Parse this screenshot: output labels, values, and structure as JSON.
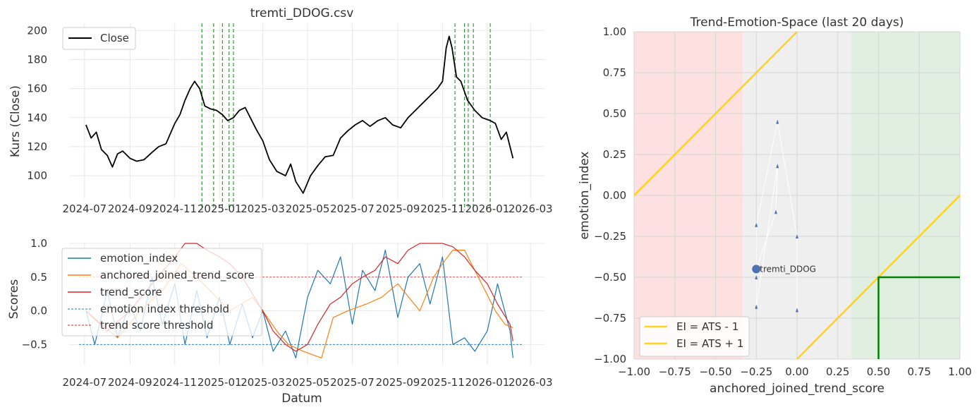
{
  "chart_data": [
    {
      "type": "line",
      "title": "tremti_DDOG.csv",
      "xlabel": "",
      "ylabel": "Kurs (Close)",
      "xlim": [
        "2024-06-10",
        "2026-03-20"
      ],
      "ylim": [
        84,
        205
      ],
      "xticks": [
        "2024-07",
        "2024-09",
        "2024-11",
        "2025-01",
        "2025-03",
        "2025-05",
        "2025-07",
        "2025-09",
        "2025-11",
        "2026-01",
        "2026-03"
      ],
      "yticks": [
        100,
        120,
        140,
        160,
        180,
        200
      ],
      "legend": {
        "position": "top-left",
        "entries": [
          "Close"
        ]
      },
      "grid": true,
      "series": [
        {
          "name": "Close",
          "color": "#000000",
          "x": [
            "2024-07-03",
            "2024-07-10",
            "2024-07-17",
            "2024-07-24",
            "2024-08-01",
            "2024-08-08",
            "2024-08-15",
            "2024-08-22",
            "2024-09-01",
            "2024-09-10",
            "2024-09-20",
            "2024-10-01",
            "2024-10-10",
            "2024-10-20",
            "2024-11-01",
            "2024-11-08",
            "2024-11-15",
            "2024-11-22",
            "2024-11-28",
            "2024-12-05",
            "2024-12-12",
            "2024-12-20",
            "2024-12-28",
            "2025-01-05",
            "2025-01-12",
            "2025-01-20",
            "2025-01-28",
            "2025-02-05",
            "2025-02-12",
            "2025-02-20",
            "2025-03-01",
            "2025-03-10",
            "2025-03-20",
            "2025-04-01",
            "2025-04-08",
            "2025-04-15",
            "2025-04-25",
            "2025-05-05",
            "2025-05-15",
            "2025-05-25",
            "2025-06-05",
            "2025-06-15",
            "2025-06-25",
            "2025-07-05",
            "2025-07-15",
            "2025-07-25",
            "2025-08-05",
            "2025-08-15",
            "2025-08-25",
            "2025-09-05",
            "2025-09-15",
            "2025-09-25",
            "2025-10-05",
            "2025-10-15",
            "2025-10-25",
            "2025-11-01",
            "2025-11-06",
            "2025-11-10",
            "2025-11-14",
            "2025-11-20",
            "2025-11-26",
            "2025-12-05",
            "2025-12-15",
            "2025-12-25",
            "2026-01-05",
            "2026-01-12",
            "2026-01-20",
            "2026-01-27",
            "2026-02-01",
            "2026-02-05"
          ],
          "y": [
            135,
            126,
            130,
            118,
            114,
            106,
            115,
            117,
            112,
            110,
            111,
            116,
            120,
            122,
            136,
            142,
            152,
            160,
            165,
            160,
            148,
            146,
            145,
            142,
            138,
            140,
            145,
            147,
            140,
            132,
            124,
            111,
            103,
            100,
            108,
            96,
            88,
            100,
            107,
            113,
            114,
            126,
            131,
            135,
            138,
            134,
            138,
            140,
            135,
            133,
            140,
            145,
            150,
            155,
            160,
            165,
            188,
            196,
            188,
            168,
            165,
            152,
            145,
            140,
            138,
            136,
            125,
            130,
            120,
            112
          ]
        }
      ],
      "vlines": {
        "color": "#2ca02c",
        "style": "dashed",
        "x": [
          "2024-12-08",
          "2024-12-24",
          "2025-01-05",
          "2025-01-14",
          "2025-01-20",
          "2025-11-18",
          "2025-12-01",
          "2025-12-06",
          "2025-12-13",
          "2026-01-05"
        ]
      }
    },
    {
      "type": "line",
      "title": "",
      "xlabel": "Datum",
      "ylabel": "Scores",
      "xlim": [
        "2024-06-10",
        "2026-03-20"
      ],
      "ylim": [
        -0.8,
        1.0
      ],
      "xticks": [
        "2024-07",
        "2024-09",
        "2024-11",
        "2025-01",
        "2025-03",
        "2025-05",
        "2025-07",
        "2025-09",
        "2025-11",
        "2026-01",
        "2026-03"
      ],
      "yticks": [
        -0.5,
        0.0,
        0.5,
        1.0
      ],
      "yticklabels": [
        "−0.5",
        "0.0",
        "0.5",
        "1.0"
      ],
      "legend": {
        "position": "top-left",
        "entries": [
          "emotion_index",
          "anchored_joined_trend_score",
          "trend_score",
          "emotion index threshold",
          "trend score threshold"
        ]
      },
      "grid": true,
      "series": [
        {
          "name": "emotion_index",
          "color": "#1f77b4",
          "x": [
            "2024-07-03",
            "2024-07-15",
            "2024-08-01",
            "2024-08-15",
            "2024-09-01",
            "2024-09-15",
            "2024-10-01",
            "2024-10-15",
            "2024-11-01",
            "2024-11-15",
            "2024-12-01",
            "2024-12-15",
            "2025-01-01",
            "2025-01-15",
            "2025-02-01",
            "2025-02-15",
            "2025-03-01",
            "2025-03-15",
            "2025-04-01",
            "2025-04-15",
            "2025-05-01",
            "2025-05-15",
            "2025-06-01",
            "2025-06-15",
            "2025-07-01",
            "2025-07-15",
            "2025-08-01",
            "2025-08-15",
            "2025-09-01",
            "2025-09-15",
            "2025-10-01",
            "2025-10-15",
            "2025-11-01",
            "2025-11-15",
            "2025-12-01",
            "2025-12-15",
            "2026-01-01",
            "2026-01-15",
            "2026-02-01",
            "2026-02-05"
          ],
          "y": [
            0.0,
            -0.5,
            0.3,
            -0.4,
            0.1,
            -0.3,
            0.5,
            -0.2,
            0.4,
            -0.5,
            0.3,
            -0.4,
            0.2,
            -0.5,
            0.1,
            -0.4,
            0.0,
            -0.6,
            -0.3,
            -0.7,
            0.2,
            0.6,
            0.4,
            0.8,
            -0.2,
            0.6,
            0.3,
            0.9,
            -0.1,
            0.5,
            0.7,
            0.1,
            0.8,
            -0.5,
            -0.4,
            -0.6,
            -0.3,
            0.4,
            -0.3,
            -0.7
          ]
        },
        {
          "name": "anchored_joined_trend_score",
          "color": "#ff7f0e",
          "x": [
            "2024-07-03",
            "2024-08-15",
            "2024-09-15",
            "2024-10-15",
            "2024-11-10",
            "2024-12-10",
            "2025-01-15",
            "2025-02-15",
            "2025-03-01",
            "2025-03-20",
            "2025-04-05",
            "2025-04-25",
            "2025-05-20",
            "2025-06-05",
            "2025-06-25",
            "2025-07-20",
            "2025-08-10",
            "2025-09-01",
            "2025-10-01",
            "2025-10-20",
            "2025-11-01",
            "2025-11-15",
            "2025-12-01",
            "2026-01-12",
            "2026-01-25",
            "2026-02-05"
          ],
          "y": [
            0.0,
            -0.4,
            0.0,
            0.3,
            0.7,
            0.4,
            0.0,
            0.2,
            0.0,
            -0.3,
            -0.5,
            -0.6,
            -0.7,
            -0.1,
            0.0,
            0.1,
            0.2,
            0.4,
            0.0,
            0.5,
            0.7,
            0.9,
            0.9,
            0.0,
            -0.2,
            -0.25
          ]
        },
        {
          "name": "trend_score",
          "color": "#d62728",
          "x": [
            "2024-07-03",
            "2024-08-01",
            "2024-09-01",
            "2024-10-01",
            "2024-11-01",
            "2024-11-15",
            "2024-12-01",
            "2024-12-15",
            "2025-01-01",
            "2025-01-15",
            "2025-02-01",
            "2025-03-01",
            "2025-03-15",
            "2025-04-01",
            "2025-04-15",
            "2025-05-01",
            "2025-05-15",
            "2025-06-01",
            "2025-06-15",
            "2025-07-01",
            "2025-07-15",
            "2025-08-01",
            "2025-08-15",
            "2025-09-01",
            "2025-09-15",
            "2025-10-01",
            "2025-10-15",
            "2025-11-01",
            "2025-11-15",
            "2025-12-01",
            "2025-12-15",
            "2026-01-01",
            "2026-01-15",
            "2026-02-01",
            "2026-02-05"
          ],
          "y": [
            0.0,
            -0.3,
            0.0,
            0.4,
            0.8,
            1.0,
            1.0,
            0.9,
            0.8,
            0.7,
            0.5,
            0.0,
            -0.3,
            -0.5,
            -0.6,
            -0.5,
            -0.2,
            0.1,
            0.2,
            0.4,
            0.5,
            0.6,
            0.8,
            0.7,
            0.9,
            1.0,
            1.0,
            1.0,
            0.95,
            0.8,
            0.6,
            0.4,
            0.1,
            -0.2,
            -0.45
          ]
        }
      ],
      "hlines": [
        {
          "name": "emotion index threshold",
          "y": -0.5,
          "color": "#1f77b4",
          "style": "dashed"
        },
        {
          "name": "trend score threshold",
          "y": 0.5,
          "color": "#d62728",
          "style": "dashed"
        }
      ]
    },
    {
      "type": "scatter",
      "title": "Trend-Emotion-Space (last 20 days)",
      "xlabel": "anchored_joined_trend_score",
      "ylabel": "emotion_index",
      "xlim": [
        -1.0,
        1.0
      ],
      "ylim": [
        -1.0,
        1.0
      ],
      "xticks": [
        -1.0,
        -0.75,
        -0.5,
        -0.25,
        0.0,
        0.25,
        0.5,
        0.75,
        1.0
      ],
      "xticklabels": [
        "−1.00",
        "−0.75",
        "−0.50",
        "−0.25",
        "0.00",
        "0.25",
        "0.50",
        "0.75",
        "1.00"
      ],
      "yticks": [
        -1.0,
        -0.75,
        -0.5,
        -0.25,
        0.0,
        0.25,
        0.5,
        0.75,
        1.0
      ],
      "yticklabels": [
        "−1.00",
        "−0.75",
        "−0.50",
        "−0.25",
        "0.00",
        "0.25",
        "0.50",
        "0.75",
        "1.00"
      ],
      "legend": {
        "position": "bottom-left",
        "entries": [
          "EI = ATS - 1",
          "EI = ATS + 1"
        ]
      },
      "grid": true,
      "regions": [
        {
          "x": [
            -1.0,
            -0.333
          ],
          "color": "#fde0e0"
        },
        {
          "x": [
            -0.333,
            0.333
          ],
          "color": "#efefef"
        },
        {
          "x": [
            0.333,
            1.0
          ],
          "color": "#e0efe0"
        }
      ],
      "lines": [
        {
          "name": "EI = ATS - 1",
          "color": "#ffd21f",
          "x": [
            0.0,
            1.0
          ],
          "y": [
            -1.0,
            0.0
          ]
        },
        {
          "name": "EI = ATS + 1",
          "color": "#ffd21f",
          "x": [
            -1.0,
            0.0
          ],
          "y": [
            0.0,
            1.0
          ]
        }
      ],
      "box": {
        "color": "#008000",
        "x": [
          0.5,
          1.0
        ],
        "y": [
          -1.0,
          -0.5
        ]
      },
      "path": {
        "x": [
          0.0,
          0.0,
          -0.12,
          -0.25,
          -0.25,
          -0.25,
          -0.12,
          -0.13,
          -0.25
        ],
        "y": [
          -0.7,
          -0.25,
          0.45,
          -0.18,
          -0.5,
          -0.68,
          0.18,
          -0.1,
          -0.45
        ]
      },
      "current_point": {
        "x": -0.25,
        "y": -0.45,
        "label": "tremti_DDOG",
        "color": "#4c72b0"
      }
    }
  ]
}
